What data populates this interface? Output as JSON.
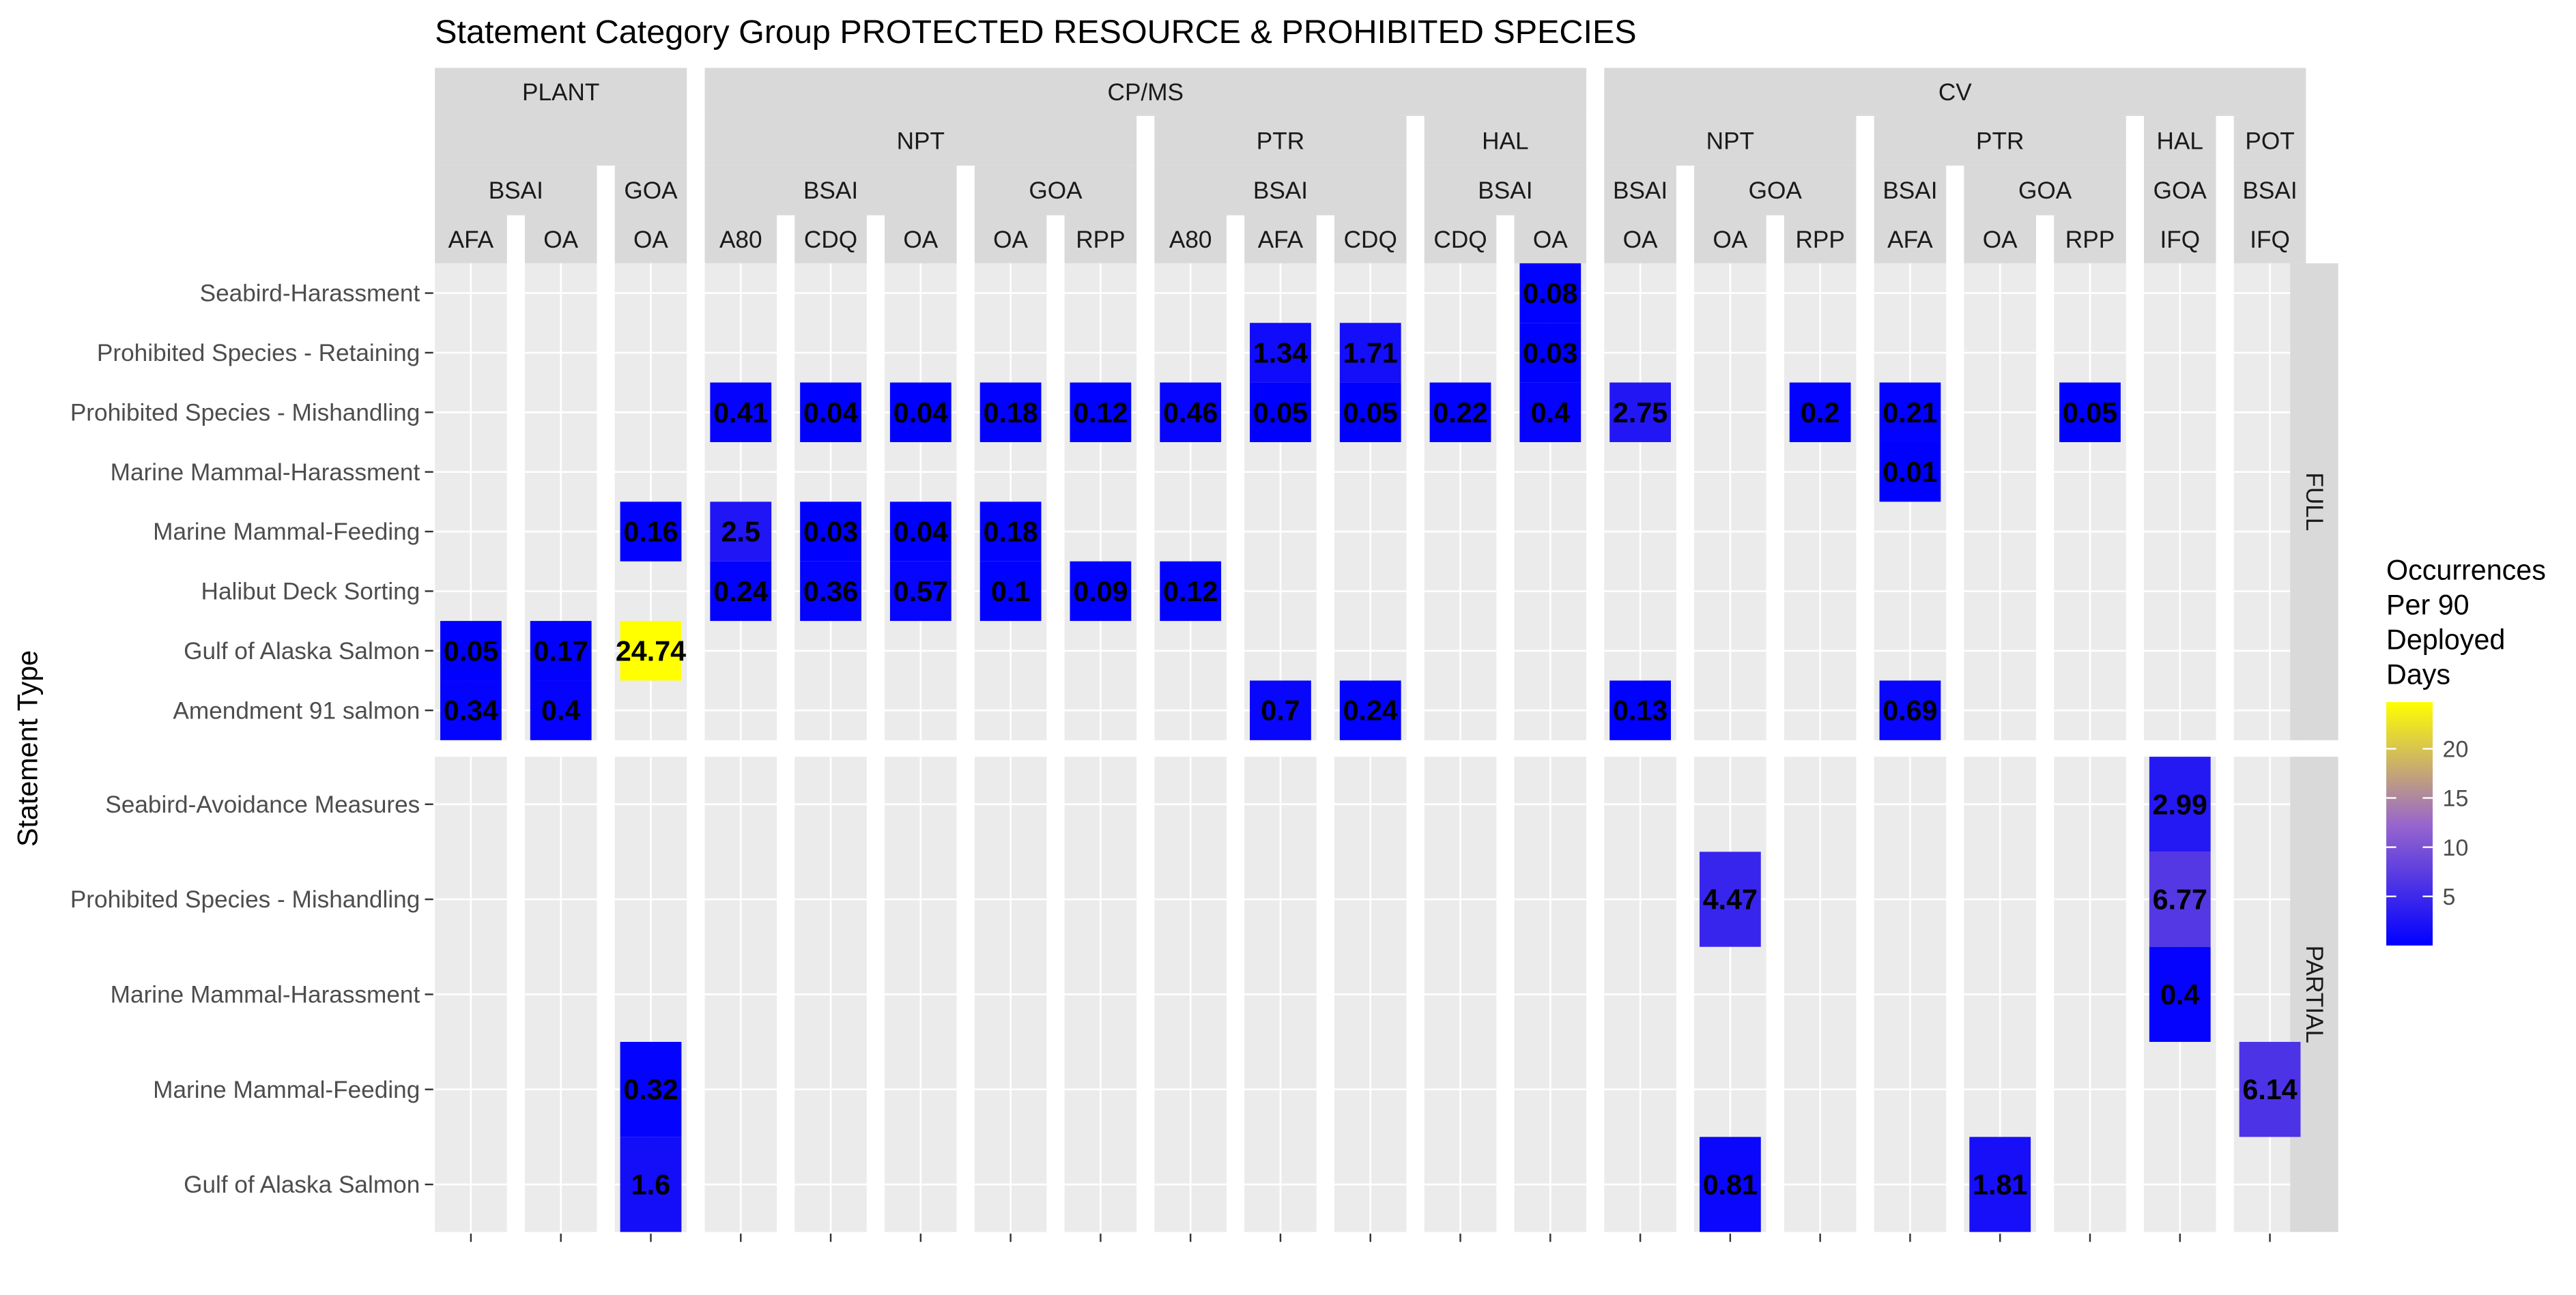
{
  "chart_data": {
    "type": "heatmap",
    "title": "Statement Category Group PROTECTED RESOURCE & PROHIBITED SPECIES",
    "ylabel": "Statement Type",
    "legend": {
      "title_lines": [
        "Occurrences",
        "Per 90",
        "Deployed",
        "Days"
      ],
      "ticks": [
        5,
        10,
        15,
        20
      ],
      "range": [
        0.01,
        24.74
      ],
      "colors": {
        "low": "#0000FF",
        "mid": "#9966CC",
        "high": "#FFFF00"
      },
      "placement": "right"
    },
    "columns": [
      {
        "gear": "PLANT",
        "sector": "",
        "area": "BSAI",
        "program": "AFA"
      },
      {
        "gear": "PLANT",
        "sector": "",
        "area": "BSAI",
        "program": "OA"
      },
      {
        "gear": "PLANT",
        "sector": "",
        "area": "GOA",
        "program": "OA"
      },
      {
        "gear": "CP/MS",
        "sector": "NPT",
        "area": "BSAI",
        "program": "A80"
      },
      {
        "gear": "CP/MS",
        "sector": "NPT",
        "area": "BSAI",
        "program": "CDQ"
      },
      {
        "gear": "CP/MS",
        "sector": "NPT",
        "area": "BSAI",
        "program": "OA"
      },
      {
        "gear": "CP/MS",
        "sector": "NPT",
        "area": "GOA",
        "program": "OA"
      },
      {
        "gear": "CP/MS",
        "sector": "NPT",
        "area": "GOA",
        "program": "RPP"
      },
      {
        "gear": "CP/MS",
        "sector": "PTR",
        "area": "BSAI",
        "program": "A80"
      },
      {
        "gear": "CP/MS",
        "sector": "PTR",
        "area": "BSAI",
        "program": "AFA"
      },
      {
        "gear": "CP/MS",
        "sector": "PTR",
        "area": "BSAI",
        "program": "CDQ"
      },
      {
        "gear": "CP/MS",
        "sector": "HAL",
        "area": "BSAI",
        "program": "CDQ"
      },
      {
        "gear": "CP/MS",
        "sector": "HAL",
        "area": "BSAI",
        "program": "OA"
      },
      {
        "gear": "CV",
        "sector": "NPT",
        "area": "BSAI",
        "program": "OA"
      },
      {
        "gear": "CV",
        "sector": "NPT",
        "area": "GOA",
        "program": "OA"
      },
      {
        "gear": "CV",
        "sector": "NPT",
        "area": "GOA",
        "program": "RPP"
      },
      {
        "gear": "CV",
        "sector": "PTR",
        "area": "BSAI",
        "program": "AFA"
      },
      {
        "gear": "CV",
        "sector": "PTR",
        "area": "GOA",
        "program": "OA"
      },
      {
        "gear": "CV",
        "sector": "PTR",
        "area": "GOA",
        "program": "RPP"
      },
      {
        "gear": "CV",
        "sector": "HAL",
        "area": "GOA",
        "program": "IFQ"
      },
      {
        "gear": "CV",
        "sector": "POT",
        "area": "BSAI",
        "program": "IFQ"
      }
    ],
    "panels": [
      {
        "name": "FULL",
        "rows": [
          "Seabird-Harassment",
          "Prohibited Species - Retaining",
          "Prohibited Species - Mishandling",
          "Marine Mammal-Harassment",
          "Marine Mammal-Feeding",
          "Halibut Deck Sorting",
          "Gulf of Alaska Salmon",
          "Amendment 91 salmon"
        ],
        "cells": [
          {
            "row": 0,
            "col": 12,
            "value": 0.08
          },
          {
            "row": 1,
            "col": 9,
            "value": 1.34
          },
          {
            "row": 1,
            "col": 10,
            "value": 1.71
          },
          {
            "row": 1,
            "col": 12,
            "value": 0.03
          },
          {
            "row": 2,
            "col": 3,
            "value": 0.41
          },
          {
            "row": 2,
            "col": 4,
            "value": 0.04
          },
          {
            "row": 2,
            "col": 5,
            "value": 0.04
          },
          {
            "row": 2,
            "col": 6,
            "value": 0.18
          },
          {
            "row": 2,
            "col": 7,
            "value": 0.12
          },
          {
            "row": 2,
            "col": 8,
            "value": 0.46
          },
          {
            "row": 2,
            "col": 9,
            "value": 0.05
          },
          {
            "row": 2,
            "col": 10,
            "value": 0.05
          },
          {
            "row": 2,
            "col": 11,
            "value": 0.22
          },
          {
            "row": 2,
            "col": 12,
            "value": 0.4
          },
          {
            "row": 2,
            "col": 13,
            "value": 2.75
          },
          {
            "row": 2,
            "col": 15,
            "value": 0.2
          },
          {
            "row": 2,
            "col": 16,
            "value": 0.21
          },
          {
            "row": 2,
            "col": 18,
            "value": 0.05
          },
          {
            "row": 3,
            "col": 16,
            "value": 0.01
          },
          {
            "row": 4,
            "col": 2,
            "value": 0.16
          },
          {
            "row": 4,
            "col": 3,
            "value": 2.5
          },
          {
            "row": 4,
            "col": 4,
            "value": 0.03
          },
          {
            "row": 4,
            "col": 5,
            "value": 0.04
          },
          {
            "row": 4,
            "col": 6,
            "value": 0.18
          },
          {
            "row": 5,
            "col": 3,
            "value": 0.24
          },
          {
            "row": 5,
            "col": 4,
            "value": 0.36
          },
          {
            "row": 5,
            "col": 5,
            "value": 0.57
          },
          {
            "row": 5,
            "col": 6,
            "value": 0.1
          },
          {
            "row": 5,
            "col": 7,
            "value": 0.09
          },
          {
            "row": 5,
            "col": 8,
            "value": 0.12
          },
          {
            "row": 6,
            "col": 0,
            "value": 0.05
          },
          {
            "row": 6,
            "col": 1,
            "value": 0.17
          },
          {
            "row": 6,
            "col": 2,
            "value": 24.74
          },
          {
            "row": 7,
            "col": 0,
            "value": 0.34
          },
          {
            "row": 7,
            "col": 1,
            "value": 0.4
          },
          {
            "row": 7,
            "col": 9,
            "value": 0.7
          },
          {
            "row": 7,
            "col": 10,
            "value": 0.24
          },
          {
            "row": 7,
            "col": 13,
            "value": 0.13
          },
          {
            "row": 7,
            "col": 16,
            "value": 0.69
          }
        ]
      },
      {
        "name": "PARTIAL",
        "rows": [
          "Seabird-Avoidance Measures",
          "Prohibited Species - Mishandling",
          "Marine Mammal-Harassment",
          "Marine Mammal-Feeding",
          "Gulf of Alaska Salmon"
        ],
        "cells": [
          {
            "row": 0,
            "col": 19,
            "value": 2.99
          },
          {
            "row": 1,
            "col": 14,
            "value": 4.47
          },
          {
            "row": 1,
            "col": 19,
            "value": 6.77
          },
          {
            "row": 2,
            "col": 19,
            "value": 0.4
          },
          {
            "row": 3,
            "col": 2,
            "value": 0.32
          },
          {
            "row": 3,
            "col": 20,
            "value": 6.14
          },
          {
            "row": 4,
            "col": 2,
            "value": 1.6
          },
          {
            "row": 4,
            "col": 14,
            "value": 0.81
          },
          {
            "row": 4,
            "col": 17,
            "value": 1.81
          }
        ]
      }
    ]
  }
}
